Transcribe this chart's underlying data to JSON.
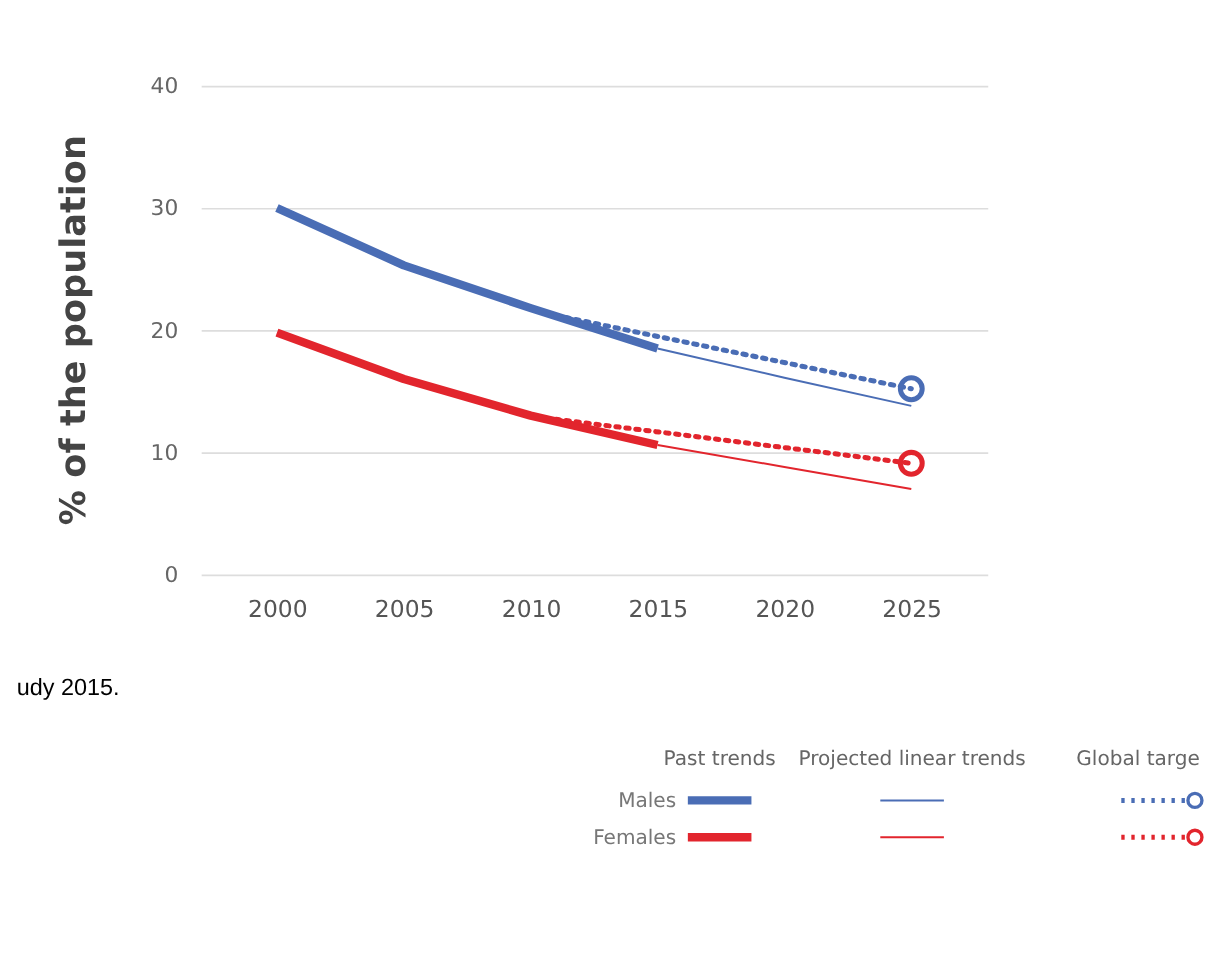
{
  "chart_data": {
    "type": "line",
    "ylabel": "% of the population",
    "xlim": [
      1997,
      2028
    ],
    "xticks": [
      2000,
      2005,
      2010,
      2015,
      2020,
      2025
    ],
    "ylim": [
      0,
      40
    ],
    "yticks": [
      0,
      10,
      20,
      30,
      40
    ],
    "grid": "y",
    "legend": "bottom right",
    "annotations": [
      "udy 2015.",
      "Past trends",
      "Projected linear trends",
      "Global targe"
    ],
    "series": [
      {
        "name": "Males",
        "color": "#4a6db5",
        "line_style": "solid",
        "x": [
          2000,
          2005,
          2010,
          2015
        ],
        "values": [
          30,
          25.3,
          21.8,
          18.5
        ]
      },
      {
        "name": "Females",
        "color": "#e2252d",
        "line_style": "solid",
        "x": [
          2000,
          2005,
          2010,
          2015
        ],
        "values": [
          19.8,
          16,
          13,
          10.6
        ]
      },
      {
        "color": "#4a6db5",
        "line_style": "solid",
        "x": [
          2015,
          2020,
          2025
        ],
        "values": [
          18.5,
          16.1,
          13.8
        ]
      },
      {
        "color": "#e2252d",
        "line_style": "solid",
        "x": [
          2015,
          2020,
          2025
        ],
        "values": [
          10.6,
          8.8,
          7
        ]
      },
      {
        "color": "#4a6db5",
        "line_style": "dotted",
        "marker": "circle",
        "x": [
          2011,
          2025
        ],
        "values": [
          21.2,
          15.2
        ]
      },
      {
        "color": "#e2252d",
        "line_style": "dotted",
        "marker": "circle",
        "x": [
          2011,
          2025
        ],
        "values": [
          12.7,
          9.1
        ]
      }
    ]
  }
}
